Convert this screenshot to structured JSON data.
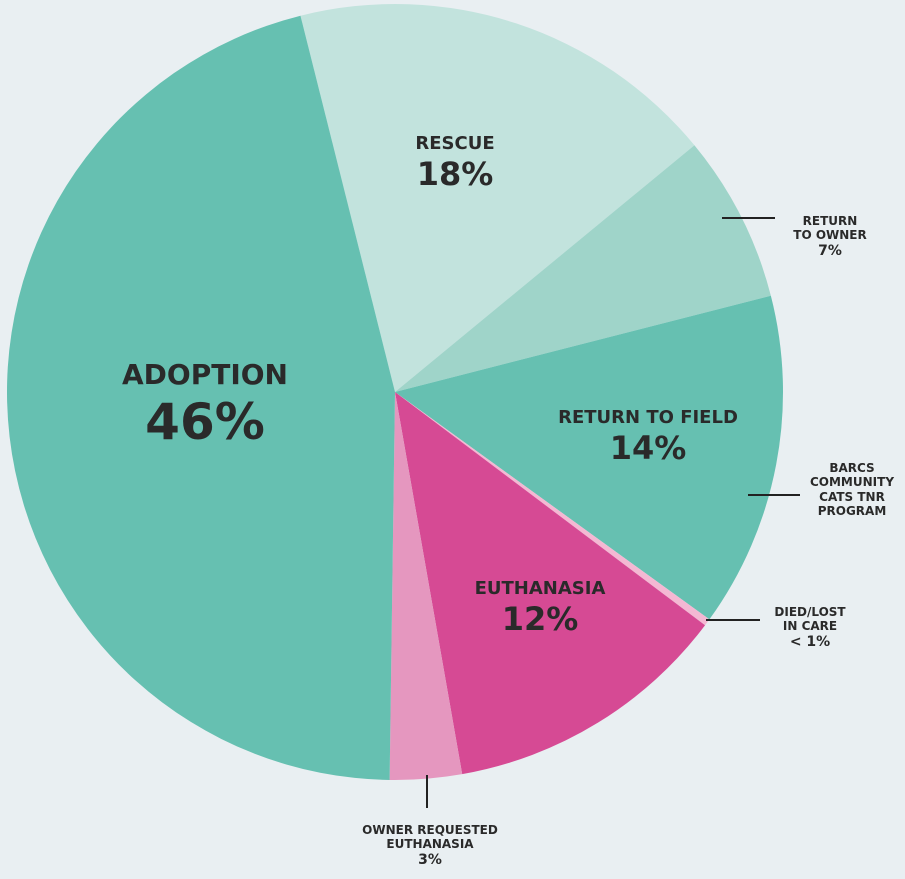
{
  "chart_data": {
    "type": "pie",
    "categories": [
      "RESCUE",
      "RETURN\nTO OWNER",
      "RETURN TO FIELD",
      "DIED/LOST\nIN CARE",
      "EUTHANASIA",
      "OWNER REQUESTED\nEUTHANASIA",
      "ADOPTION"
    ],
    "values": [
      18,
      7,
      14,
      0.3,
      12,
      3,
      46
    ],
    "value_labels": [
      "18%",
      "7%",
      "14%",
      "< 1%",
      "12%",
      "3%",
      "46%"
    ],
    "colors": [
      "#c2e3dd",
      "#9fd4c9",
      "#66c0b1",
      "#f4b8d3",
      "#d64a94",
      "#e597bf",
      "#66c0b1"
    ],
    "annotation": "BARCS\nCOMMUNITY\nCATS TNR\nPROGRAM"
  }
}
